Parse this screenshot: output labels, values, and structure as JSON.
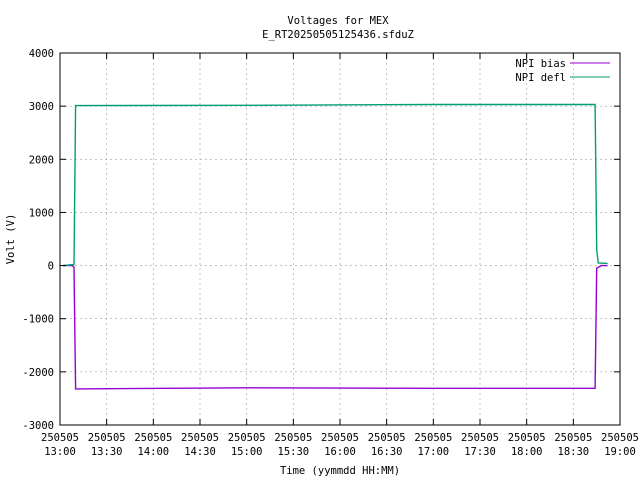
{
  "chart_data": {
    "type": "line",
    "title": "Voltages for MEX",
    "subtitle": "E_RT20250505125436.sfduZ",
    "xlabel": "Time (yymmdd HH:MM)",
    "ylabel": "Volt (V)",
    "xlim": [
      "2025-05-05 13:00",
      "2025-05-05 19:00"
    ],
    "ylim": [
      -3000,
      4000
    ],
    "grid": true,
    "legend_position": "top-right",
    "x_ticks": [
      {
        "date": "250505",
        "time": "13:00"
      },
      {
        "date": "250505",
        "time": "13:30"
      },
      {
        "date": "250505",
        "time": "14:00"
      },
      {
        "date": "250505",
        "time": "14:30"
      },
      {
        "date": "250505",
        "time": "15:00"
      },
      {
        "date": "250505",
        "time": "15:30"
      },
      {
        "date": "250505",
        "time": "16:00"
      },
      {
        "date": "250505",
        "time": "16:30"
      },
      {
        "date": "250505",
        "time": "17:00"
      },
      {
        "date": "250505",
        "time": "17:30"
      },
      {
        "date": "250505",
        "time": "18:00"
      },
      {
        "date": "250505",
        "time": "18:30"
      },
      {
        "date": "250505",
        "time": "19:00"
      }
    ],
    "y_ticks": [
      "-3000",
      "-2000",
      "-1000",
      "0",
      "1000",
      "2000",
      "3000",
      "4000"
    ],
    "series": [
      {
        "name": "NPI bias",
        "color": "#9400d3",
        "points": [
          [
            "2025-05-05 13:02",
            0
          ],
          [
            "2025-05-05 13:08",
            0
          ],
          [
            "2025-05-05 13:09",
            -30
          ],
          [
            "2025-05-05 13:10",
            -2320
          ],
          [
            "2025-05-05 15:00",
            -2300
          ],
          [
            "2025-05-05 17:00",
            -2310
          ],
          [
            "2025-05-05 18:44",
            -2310
          ],
          [
            "2025-05-05 18:45",
            -50
          ],
          [
            "2025-05-05 18:48",
            0
          ],
          [
            "2025-05-05 18:52",
            0
          ]
        ]
      },
      {
        "name": "NPI defl",
        "color": "#009e73",
        "points": [
          [
            "2025-05-05 13:02",
            0
          ],
          [
            "2025-05-05 13:09",
            20
          ],
          [
            "2025-05-05 13:10",
            3010
          ],
          [
            "2025-05-05 15:00",
            3015
          ],
          [
            "2025-05-05 17:00",
            3030
          ],
          [
            "2025-05-05 18:44",
            3030
          ],
          [
            "2025-05-05 18:45",
            300
          ],
          [
            "2025-05-05 18:46",
            50
          ],
          [
            "2025-05-05 18:52",
            40
          ]
        ]
      }
    ]
  }
}
